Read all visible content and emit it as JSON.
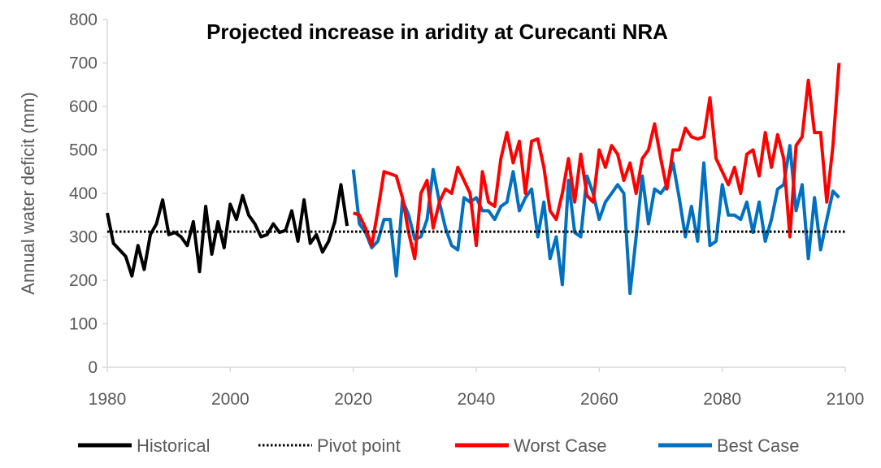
{
  "chart_data": {
    "type": "line",
    "title": "Projected increase in aridity at Curecanti NRA",
    "xlabel": "",
    "ylabel": "Annual water deficit (mm)",
    "xlim": [
      1980,
      2100
    ],
    "ylim": [
      0,
      800
    ],
    "xticks": [
      "1980",
      "2000",
      "2020",
      "2040",
      "2060",
      "2080",
      "2100"
    ],
    "yticks": [
      "0",
      "100",
      "200",
      "300",
      "400",
      "500",
      "600",
      "700",
      "800"
    ],
    "grid": false,
    "legend": "bottom",
    "series": [
      {
        "name": "Historical",
        "color": "#000000",
        "style": "solid",
        "x": [
          1980,
          1981,
          1982,
          1983,
          1984,
          1985,
          1986,
          1987,
          1988,
          1989,
          1990,
          1991,
          1992,
          1993,
          1994,
          1995,
          1996,
          1997,
          1998,
          1999,
          2000,
          2001,
          2002,
          2003,
          2004,
          2005,
          2006,
          2007,
          2008,
          2009,
          2010,
          2011,
          2012,
          2013,
          2014,
          2015,
          2016,
          2017,
          2018,
          2019
        ],
        "values": [
          355,
          285,
          270,
          255,
          210,
          280,
          225,
          305,
          330,
          385,
          305,
          310,
          300,
          280,
          335,
          220,
          370,
          260,
          335,
          275,
          375,
          340,
          395,
          350,
          330,
          300,
          305,
          330,
          310,
          315,
          360,
          290,
          385,
          285,
          305,
          265,
          290,
          335,
          420,
          325
        ]
      },
      {
        "name": "Pivot point",
        "color": "#000000",
        "style": "dotted",
        "x": [
          1980,
          2100
        ],
        "values": [
          312,
          312
        ]
      },
      {
        "name": "Worst Case",
        "color": "#ff0000",
        "style": "solid",
        "x": [
          2020,
          2021,
          2022,
          2023,
          2024,
          2025,
          2026,
          2027,
          2028,
          2029,
          2030,
          2031,
          2032,
          2033,
          2034,
          2035,
          2036,
          2037,
          2038,
          2039,
          2040,
          2041,
          2042,
          2043,
          2044,
          2045,
          2046,
          2047,
          2048,
          2049,
          2050,
          2051,
          2052,
          2053,
          2054,
          2055,
          2056,
          2057,
          2058,
          2059,
          2060,
          2061,
          2062,
          2063,
          2064,
          2065,
          2066,
          2067,
          2068,
          2069,
          2070,
          2071,
          2072,
          2073,
          2074,
          2075,
          2076,
          2077,
          2078,
          2079,
          2080,
          2081,
          2082,
          2083,
          2084,
          2085,
          2086,
          2087,
          2088,
          2089,
          2090,
          2091,
          2092,
          2093,
          2094,
          2095,
          2096,
          2097,
          2098,
          2099
        ],
        "values": [
          355,
          350,
          320,
          280,
          360,
          450,
          445,
          440,
          390,
          310,
          250,
          400,
          430,
          320,
          380,
          410,
          400,
          460,
          430,
          400,
          280,
          450,
          380,
          370,
          480,
          540,
          470,
          520,
          400,
          520,
          525,
          460,
          360,
          340,
          400,
          480,
          380,
          490,
          395,
          380,
          500,
          460,
          510,
          490,
          430,
          470,
          400,
          480,
          500,
          560,
          480,
          410,
          500,
          500,
          550,
          530,
          525,
          530,
          620,
          480,
          450,
          420,
          460,
          400,
          490,
          500,
          440,
          540,
          460,
          535,
          480,
          300,
          510,
          530,
          660,
          540,
          540,
          380,
          510,
          700
        ]
      },
      {
        "name": "Best Case",
        "color": "#0070c0",
        "style": "solid",
        "x": [
          2020,
          2021,
          2022,
          2023,
          2024,
          2025,
          2026,
          2027,
          2028,
          2029,
          2030,
          2031,
          2032,
          2033,
          2034,
          2035,
          2036,
          2037,
          2038,
          2039,
          2040,
          2041,
          2042,
          2043,
          2044,
          2045,
          2046,
          2047,
          2048,
          2049,
          2050,
          2051,
          2052,
          2053,
          2054,
          2055,
          2056,
          2057,
          2058,
          2059,
          2060,
          2061,
          2062,
          2063,
          2064,
          2065,
          2066,
          2067,
          2068,
          2069,
          2070,
          2071,
          2072,
          2073,
          2074,
          2075,
          2076,
          2077,
          2078,
          2079,
          2080,
          2081,
          2082,
          2083,
          2084,
          2085,
          2086,
          2087,
          2088,
          2089,
          2090,
          2091,
          2092,
          2093,
          2094,
          2095,
          2096,
          2097,
          2098,
          2099
        ],
        "values": [
          455,
          330,
          310,
          275,
          290,
          340,
          340,
          210,
          385,
          350,
          295,
          300,
          340,
          455,
          380,
          320,
          280,
          270,
          390,
          380,
          390,
          360,
          360,
          340,
          370,
          380,
          450,
          360,
          390,
          410,
          300,
          380,
          250,
          300,
          190,
          430,
          310,
          300,
          440,
          400,
          340,
          380,
          400,
          420,
          400,
          170,
          300,
          440,
          330,
          410,
          400,
          420,
          470,
          390,
          300,
          370,
          290,
          470,
          280,
          290,
          420,
          350,
          350,
          340,
          380,
          310,
          380,
          290,
          340,
          410,
          420,
          510,
          360,
          420,
          250,
          390,
          270,
          340,
          405,
          390
        ]
      }
    ]
  }
}
